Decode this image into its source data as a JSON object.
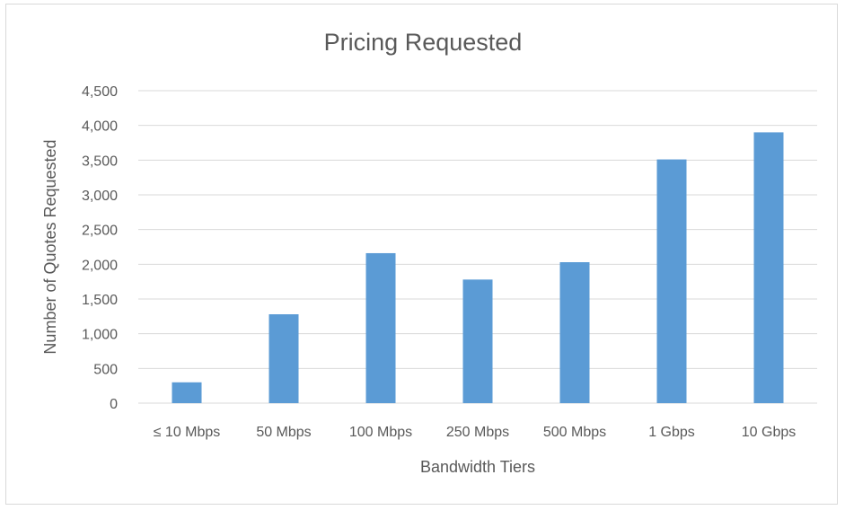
{
  "chart_data": {
    "type": "bar",
    "title": "Pricing Requested",
    "xlabel": "Bandwidth Tiers",
    "ylabel": "Number of Quotes Requested",
    "categories": [
      "≤ 10 Mbps",
      "50 Mbps",
      "100 Mbps",
      "250 Mbps",
      "500 Mbps",
      "1 Gbps",
      "10 Gbps"
    ],
    "values": [
      300,
      1280,
      2160,
      1780,
      2030,
      3510,
      3900
    ],
    "ylim": [
      0,
      4500
    ],
    "yticks": [
      "0",
      "500",
      "1,000",
      "1,500",
      "2,000",
      "2,500",
      "3,000",
      "3,500",
      "4,000",
      "4,500"
    ],
    "grid": true,
    "bar_color": "#5b9bd5",
    "grid_color": "#d9d9d9"
  }
}
